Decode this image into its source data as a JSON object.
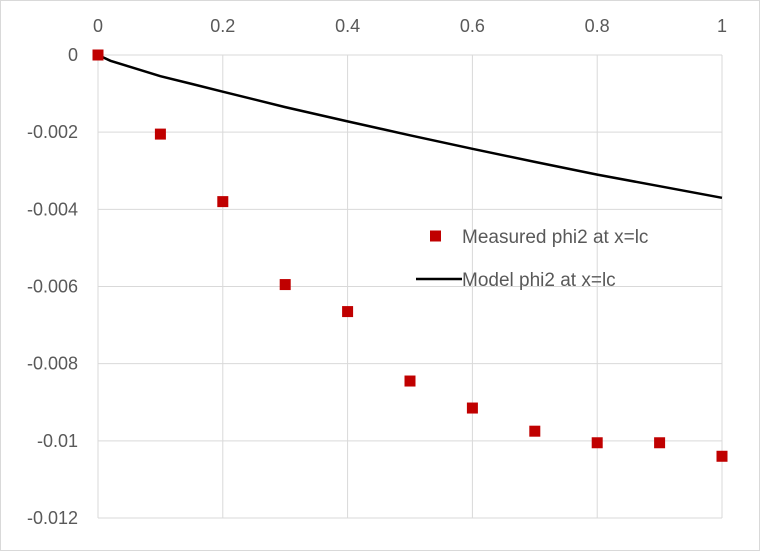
{
  "chart_data": {
    "type": "scatter",
    "title": "",
    "xlabel": "",
    "ylabel": "",
    "xlim": [
      0,
      1
    ],
    "ylim": [
      -0.012,
      0
    ],
    "x_ticks": [
      "0",
      "0.2",
      "0.4",
      "0.6",
      "0.8",
      "1"
    ],
    "y_ticks": [
      "0",
      "-0.002",
      "-0.004",
      "-0.006",
      "-0.008",
      "-0.01",
      "-0.012"
    ],
    "grid": true,
    "legend_position": "right",
    "series": [
      {
        "name": "Measured phi2 at x=lc",
        "kind": "marker",
        "marker": "square",
        "color": "#c00000",
        "x": [
          0,
          0.1,
          0.2,
          0.3,
          0.4,
          0.5,
          0.6,
          0.7,
          0.8,
          0.9,
          1.0
        ],
        "y": [
          0,
          -0.00205,
          -0.0038,
          -0.00595,
          -0.00665,
          -0.00845,
          -0.00915,
          -0.00975,
          -0.01005,
          -0.01005,
          -0.0104
        ]
      },
      {
        "name": "Model phi2 at x=lc",
        "kind": "line",
        "color": "#000000",
        "x": [
          0,
          0.02,
          0.05,
          0.1,
          0.15,
          0.2,
          0.3,
          0.4,
          0.5,
          0.6,
          0.7,
          0.8,
          0.9,
          1.0
        ],
        "y": [
          0,
          -0.00015,
          -0.0003,
          -0.00055,
          -0.00075,
          -0.00095,
          -0.00135,
          -0.00172,
          -0.00208,
          -0.00243,
          -0.00277,
          -0.0031,
          -0.0034,
          -0.0037
        ]
      }
    ]
  }
}
